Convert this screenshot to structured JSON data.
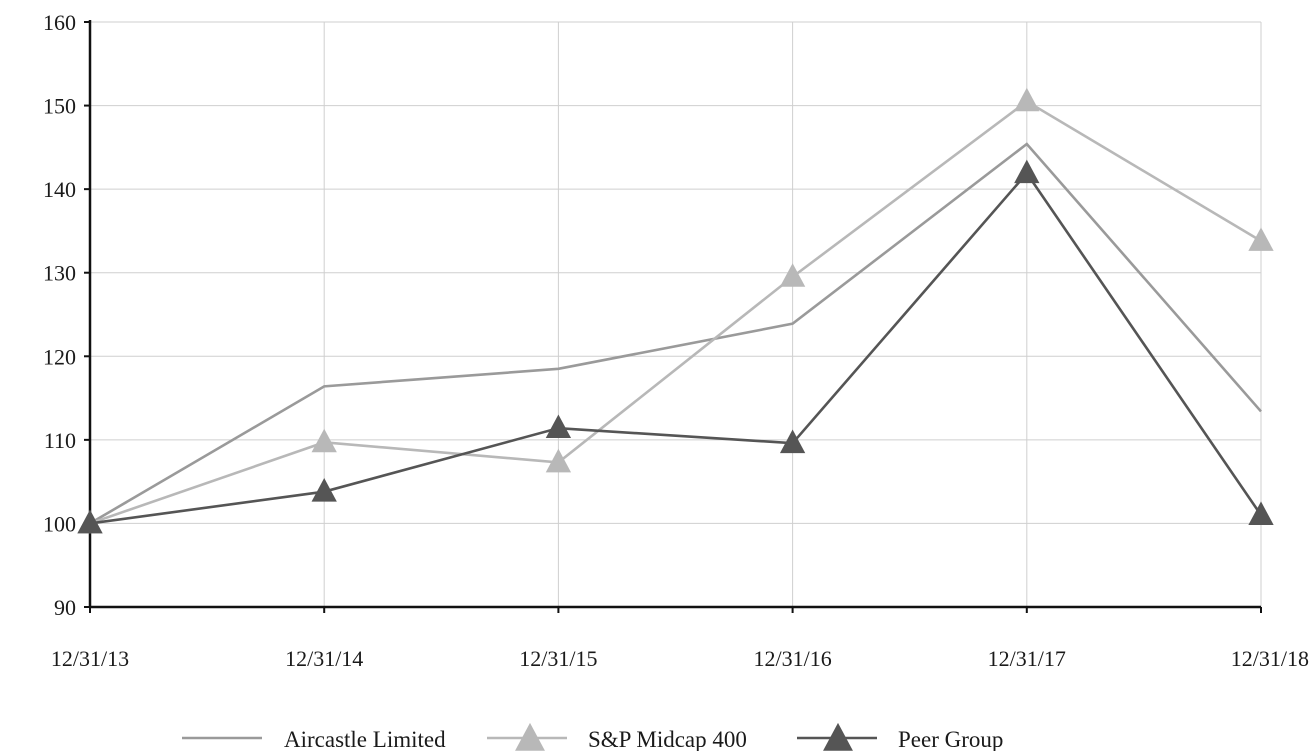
{
  "chart_data": {
    "type": "line",
    "title": "",
    "xlabel": "",
    "ylabel": "",
    "categories": [
      "12/31/13",
      "12/31/14",
      "12/31/15",
      "12/31/16",
      "12/31/17",
      "12/31/18"
    ],
    "ylim": [
      90,
      160
    ],
    "yticks": [
      90,
      100,
      110,
      120,
      130,
      140,
      150,
      160
    ],
    "grid": true,
    "legend_position": "bottom",
    "series": [
      {
        "name": "Aircastle Limited",
        "values": [
          100,
          116.4,
          118.5,
          123.9,
          145.4,
          113.4
        ],
        "color": "#9a9a9a",
        "marker": "none"
      },
      {
        "name": "S&P Midcap 400",
        "values": [
          100,
          109.7,
          107.3,
          129.5,
          150.5,
          133.8
        ],
        "color": "#b8b8b8",
        "marker": "triangle"
      },
      {
        "name": "Peer Group",
        "values": [
          100,
          103.8,
          111.4,
          109.6,
          141.9,
          101.0
        ],
        "color": "#555555",
        "marker": "triangle"
      }
    ]
  }
}
